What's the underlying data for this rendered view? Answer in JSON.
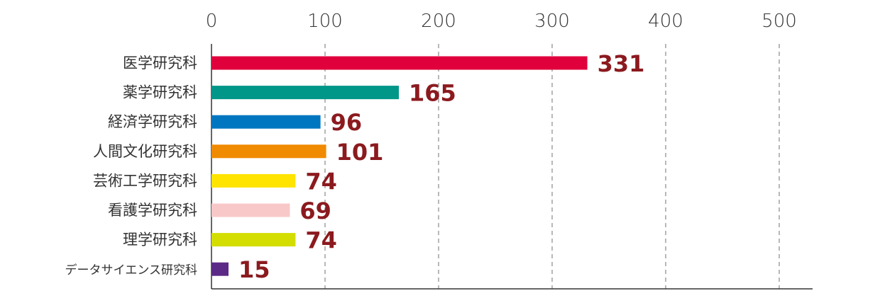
{
  "chart_data": {
    "type": "bar",
    "orientation": "horizontal",
    "title": "",
    "xlabel": "",
    "ylabel": "",
    "xlim": [
      0,
      530
    ],
    "x_ticks": [
      0,
      100,
      200,
      300,
      400,
      500
    ],
    "x_tick_labels": [
      "0",
      "100",
      "200",
      "300",
      "400",
      "500"
    ],
    "x_axis_position": "top",
    "grid": "vertical dashed",
    "legend": "none",
    "categories": [
      "医学研究科",
      "薬学研究科",
      "経済学研究科",
      "人間文化研究科",
      "芸術工学研究科",
      "看護学研究科",
      "理学研究科",
      "データサイエンス研究科"
    ],
    "values": [
      331,
      165,
      96,
      101,
      74,
      69,
      74,
      15
    ],
    "value_labels": [
      "331",
      "165",
      "96",
      "101",
      "74",
      "69",
      "74",
      "15"
    ],
    "bar_colors": [
      "#e0003c",
      "#009688",
      "#0076c0",
      "#f08a00",
      "#ffe400",
      "#f8c8c8",
      "#d4dd00",
      "#5b2a86"
    ],
    "value_label_color": "#8b1a1e"
  }
}
